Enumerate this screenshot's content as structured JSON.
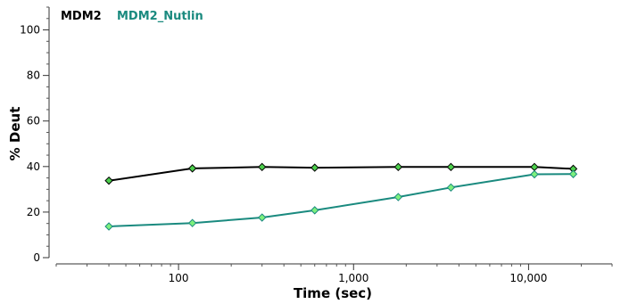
{
  "chart_data": {
    "type": "line",
    "xlabel": "Time (sec)",
    "ylabel": "% Deut",
    "x_scale": "log",
    "xlim": [
      20,
      30000
    ],
    "ylim": [
      0,
      110
    ],
    "x_ticks": [
      100,
      1000,
      10000
    ],
    "x_tick_labels": [
      "100",
      "1,000",
      "10,000"
    ],
    "y_ticks": [
      0,
      20,
      40,
      60,
      80,
      100
    ],
    "y_tick_labels": [
      "0",
      "20",
      "40",
      "60",
      "80",
      "100"
    ],
    "grid": false,
    "legend_position": "top-left",
    "series": [
      {
        "name": "MDM2",
        "color": "#000000",
        "marker_color": "#4ccf4c",
        "x": [
          40,
          120,
          300,
          600,
          1800,
          3600,
          10800,
          18000
        ],
        "y": [
          33.8,
          39.2,
          39.8,
          39.5,
          39.8,
          39.8,
          39.8,
          39.0
        ]
      },
      {
        "name": "MDM2_Nutlin",
        "color": "#1a8a7f",
        "marker_color": "#7df07d",
        "x": [
          40,
          120,
          300,
          600,
          1800,
          3600,
          10800,
          18000
        ],
        "y": [
          13.7,
          15.2,
          17.6,
          20.8,
          26.6,
          30.8,
          36.6,
          36.7
        ]
      }
    ]
  }
}
